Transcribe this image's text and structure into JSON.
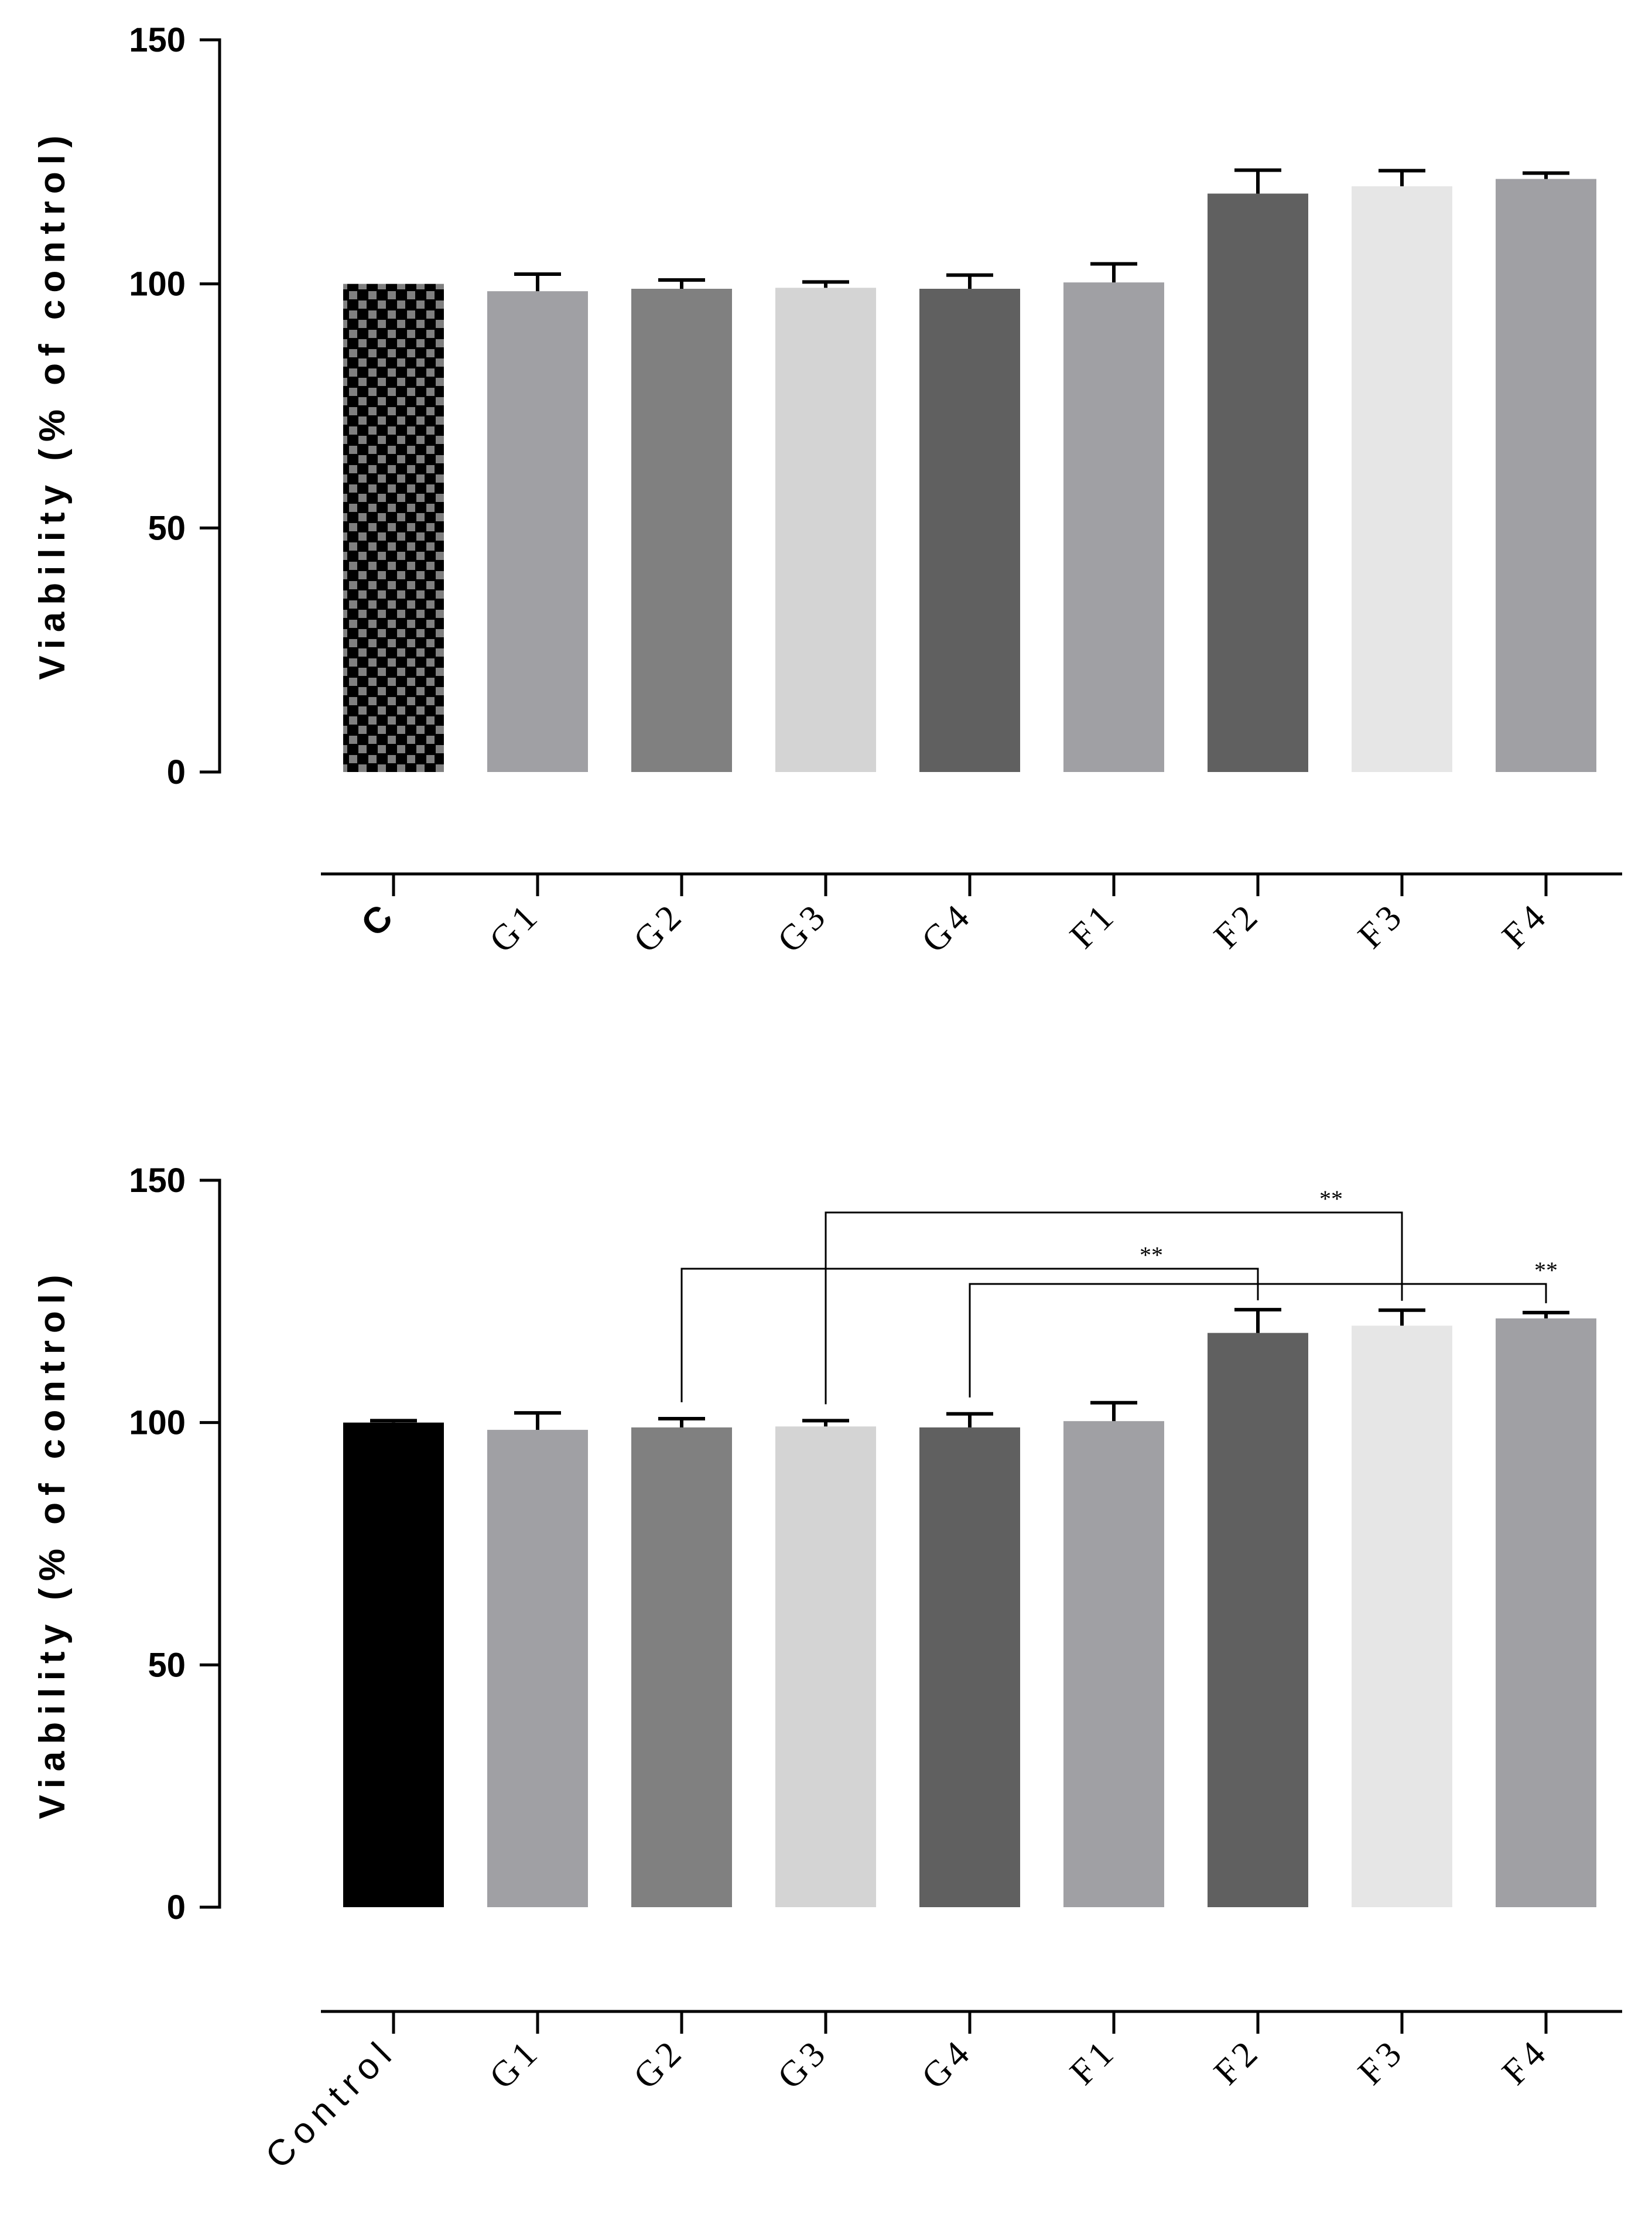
{
  "chart_data": [
    {
      "type": "bar",
      "title": "",
      "xlabel": "",
      "ylabel": "Viability (% of control)",
      "ylim": [
        0,
        150
      ],
      "yticks": [
        0,
        50,
        100,
        150
      ],
      "categories": [
        "C",
        "G1",
        "G2",
        "G3",
        "G4",
        "F1",
        "F2",
        "F3",
        "F4"
      ],
      "values": [
        100,
        98.5,
        99,
        99.2,
        99,
        100.3,
        118.5,
        120,
        121.5
      ],
      "errors": [
        0,
        3.5,
        1.8,
        1.2,
        2.8,
        3.8,
        4.8,
        3.2,
        1.2
      ],
      "colors": [
        "checker",
        "#a0a0a4",
        "#808080",
        "#d4d4d4",
        "#606060",
        "#a0a0a4",
        "#606060",
        "#e6e6e6",
        "#a0a0a4"
      ],
      "significance": []
    },
    {
      "type": "bar",
      "title": "",
      "xlabel": "",
      "ylabel": "Viability (% of control)",
      "ylim": [
        0,
        150
      ],
      "yticks": [
        0,
        50,
        100,
        150
      ],
      "categories": [
        "Control",
        "G1",
        "G2",
        "G3",
        "G4",
        "F1",
        "F2",
        "F3",
        "F4"
      ],
      "values": [
        100,
        98.5,
        99,
        99.2,
        99,
        100.3,
        118.5,
        120,
        121.5
      ],
      "errors": [
        0.4,
        3.5,
        1.8,
        1.2,
        2.8,
        3.8,
        4.8,
        3.2,
        1.2
      ],
      "colors": [
        "#000000",
        "#a0a0a4",
        "#808080",
        "#d4d4d4",
        "#606060",
        "#a0a0a4",
        "#606060",
        "#e6e6e6",
        "#a0a0a4"
      ],
      "significance": [
        {
          "from": "G2",
          "to": "F2",
          "label": "**"
        },
        {
          "from": "G3",
          "to": "F3",
          "label": "**"
        },
        {
          "from": "G4",
          "to": "F4",
          "label": "**"
        }
      ]
    }
  ]
}
